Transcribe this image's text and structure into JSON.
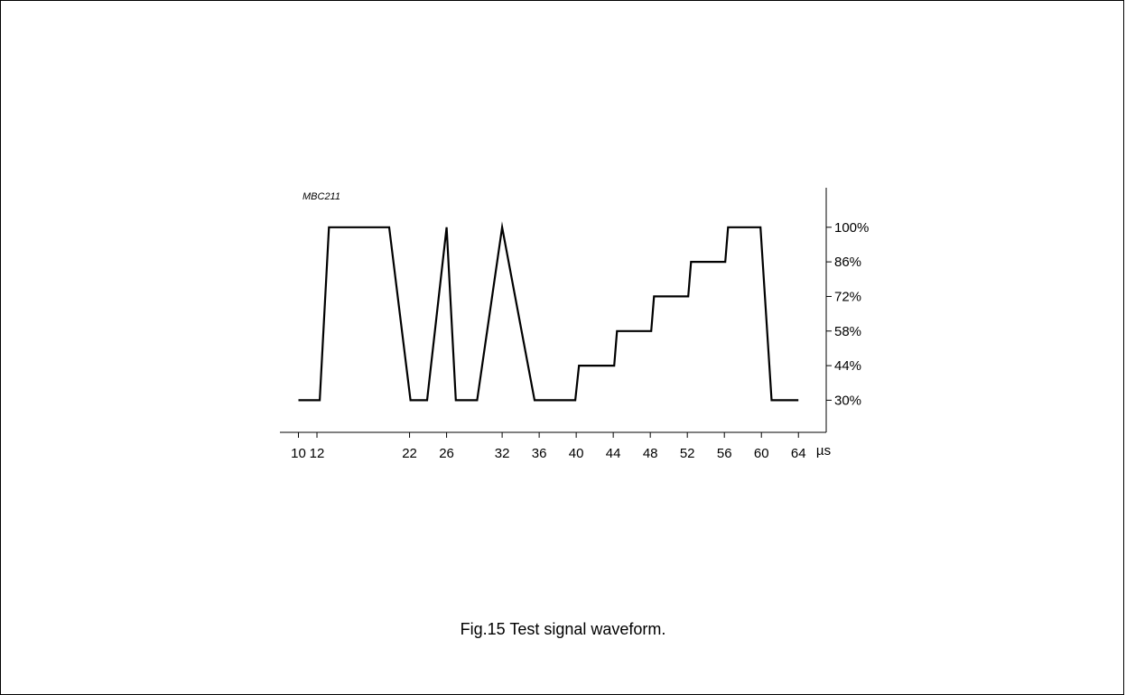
{
  "figure": {
    "code": "MBC211",
    "caption": "Fig.15  Test signal waveform."
  },
  "chart_data": {
    "type": "line",
    "title": "",
    "xlabel": "",
    "ylabel": "",
    "x_unit": "µs",
    "x_ticks": [
      10,
      12,
      22,
      26,
      32,
      36,
      40,
      44,
      48,
      52,
      56,
      60,
      64
    ],
    "x_tick_labels": [
      "10",
      "12",
      "22",
      "26",
      "32",
      "36",
      "40",
      "44",
      "48",
      "52",
      "56",
      "60",
      "64"
    ],
    "y_ticks": [
      30,
      44,
      58,
      72,
      86,
      100
    ],
    "y_tick_labels": [
      "30%",
      "44%",
      "58%",
      "72%",
      "86%",
      "100%"
    ],
    "xlim": [
      8,
      67
    ],
    "ylim": [
      17,
      116
    ],
    "grid": false,
    "series": [
      {
        "x": [
          10,
          12.3,
          13.3,
          18.6,
          19.8,
          22.1,
          23.9,
          26.0,
          27.0,
          29.3,
          32.0,
          35.5,
          39.9,
          40.3,
          44.1,
          44.4,
          48.1,
          48.4,
          52.1,
          52.4,
          56.1,
          56.4,
          59.9,
          61.1,
          64
        ],
        "y": [
          30,
          30,
          100,
          100,
          100,
          30,
          30,
          100,
          30,
          30,
          100,
          30,
          30,
          44,
          44,
          58,
          58,
          72,
          72,
          86,
          86,
          100,
          100,
          30,
          30
        ]
      }
    ]
  }
}
